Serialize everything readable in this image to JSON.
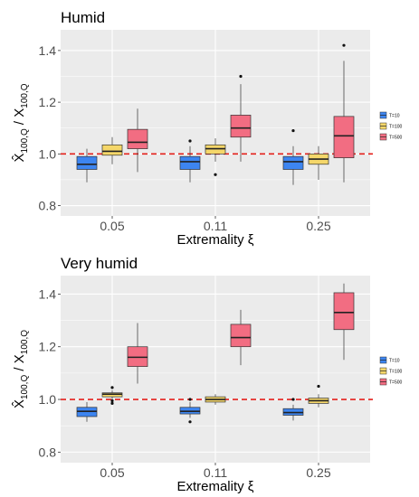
{
  "chart_data": [
    {
      "type": "box",
      "title": "Humid",
      "xlabel": "Extremality ξ",
      "ylabel": {
        "num_base": "X̂",
        "num_sub": "100,Q",
        "sep": " / ",
        "den_base": "X",
        "den_sub": "100,Q"
      },
      "categories": [
        "0.05",
        "0.11",
        "0.25"
      ],
      "ylim": [
        0.76,
        1.48
      ],
      "yticks": [
        "0.8",
        "1.0",
        "1.2",
        "1.4"
      ],
      "reference_line": 1.0,
      "legend": {
        "position": "right",
        "entries": [
          "T=10",
          "T=100",
          "T=500"
        ]
      },
      "series": [
        {
          "name": "T=10",
          "color": "#3d85f0",
          "boxes": [
            {
              "min": 0.89,
              "q1": 0.94,
              "median": 0.96,
              "q3": 0.99,
              "max": 1.02,
              "outliers": []
            },
            {
              "min": 0.89,
              "q1": 0.94,
              "median": 0.97,
              "q3": 0.99,
              "max": 1.03,
              "outliers": [
                1.05
              ]
            },
            {
              "min": 0.88,
              "q1": 0.94,
              "median": 0.97,
              "q3": 0.99,
              "max": 1.03,
              "outliers": [
                1.09
              ]
            }
          ]
        },
        {
          "name": "T=100",
          "color": "#f5d76a",
          "boxes": [
            {
              "min": 0.96,
              "q1": 0.995,
              "median": 1.01,
              "q3": 1.035,
              "max": 1.065,
              "outliers": []
            },
            {
              "min": 0.97,
              "q1": 1.0,
              "median": 1.02,
              "q3": 1.035,
              "max": 1.06,
              "outliers": [
                0.92
              ]
            },
            {
              "min": 0.9,
              "q1": 0.96,
              "median": 0.98,
              "q3": 1.0,
              "max": 1.03,
              "outliers": []
            }
          ]
        },
        {
          "name": "T=500",
          "color": "#f26d82",
          "boxes": [
            {
              "min": 0.93,
              "q1": 1.02,
              "median": 1.045,
              "q3": 1.095,
              "max": 1.175,
              "outliers": []
            },
            {
              "min": 0.97,
              "q1": 1.065,
              "median": 1.1,
              "q3": 1.15,
              "max": 1.27,
              "outliers": [
                1.3
              ]
            },
            {
              "min": 0.89,
              "q1": 0.985,
              "median": 1.07,
              "q3": 1.145,
              "max": 1.36,
              "outliers": [
                1.42
              ]
            }
          ]
        }
      ]
    },
    {
      "type": "box",
      "title": "Very humid",
      "xlabel": "Extremality ξ",
      "ylabel": {
        "num_base": "X̂",
        "num_sub": "100,Q",
        "sep": " / ",
        "den_base": "X",
        "den_sub": "100,Q"
      },
      "categories": [
        "0.05",
        "0.11",
        "0.25"
      ],
      "ylim": [
        0.76,
        1.47
      ],
      "yticks": [
        "0.8",
        "1.0",
        "1.2",
        "1.4"
      ],
      "reference_line": 1.0,
      "legend": {
        "position": "right",
        "entries": [
          "T=10",
          "T=100",
          "T=500"
        ]
      },
      "series": [
        {
          "name": "T=10",
          "color": "#3d85f0",
          "boxes": [
            {
              "min": 0.915,
              "q1": 0.935,
              "median": 0.955,
              "q3": 0.97,
              "max": 0.99,
              "outliers": []
            },
            {
              "min": 0.93,
              "q1": 0.945,
              "median": 0.955,
              "q3": 0.97,
              "max": 0.99,
              "outliers": [
                0.915,
                1.0
              ]
            },
            {
              "min": 0.92,
              "q1": 0.94,
              "median": 0.95,
              "q3": 0.965,
              "max": 0.98,
              "outliers": [
                1.0
              ]
            }
          ]
        },
        {
          "name": "T=100",
          "color": "#f5d76a",
          "boxes": [
            {
              "min": 1.0,
              "q1": 1.01,
              "median": 1.02,
              "q3": 1.025,
              "max": 1.035,
              "outliers": [
                0.985,
                0.995,
                1.045
              ]
            },
            {
              "min": 0.98,
              "q1": 0.99,
              "median": 1.0,
              "q3": 1.01,
              "max": 1.02,
              "outliers": []
            },
            {
              "min": 0.97,
              "q1": 0.985,
              "median": 0.995,
              "q3": 1.005,
              "max": 1.02,
              "outliers": [
                1.05
              ]
            }
          ]
        },
        {
          "name": "T=500",
          "color": "#f26d82",
          "boxes": [
            {
              "min": 1.06,
              "q1": 1.125,
              "median": 1.16,
              "q3": 1.2,
              "max": 1.29,
              "outliers": []
            },
            {
              "min": 1.13,
              "q1": 1.2,
              "median": 1.235,
              "q3": 1.285,
              "max": 1.34,
              "outliers": []
            },
            {
              "min": 1.15,
              "q1": 1.265,
              "median": 1.33,
              "q3": 1.405,
              "max": 1.44,
              "outliers": []
            }
          ]
        }
      ]
    }
  ]
}
